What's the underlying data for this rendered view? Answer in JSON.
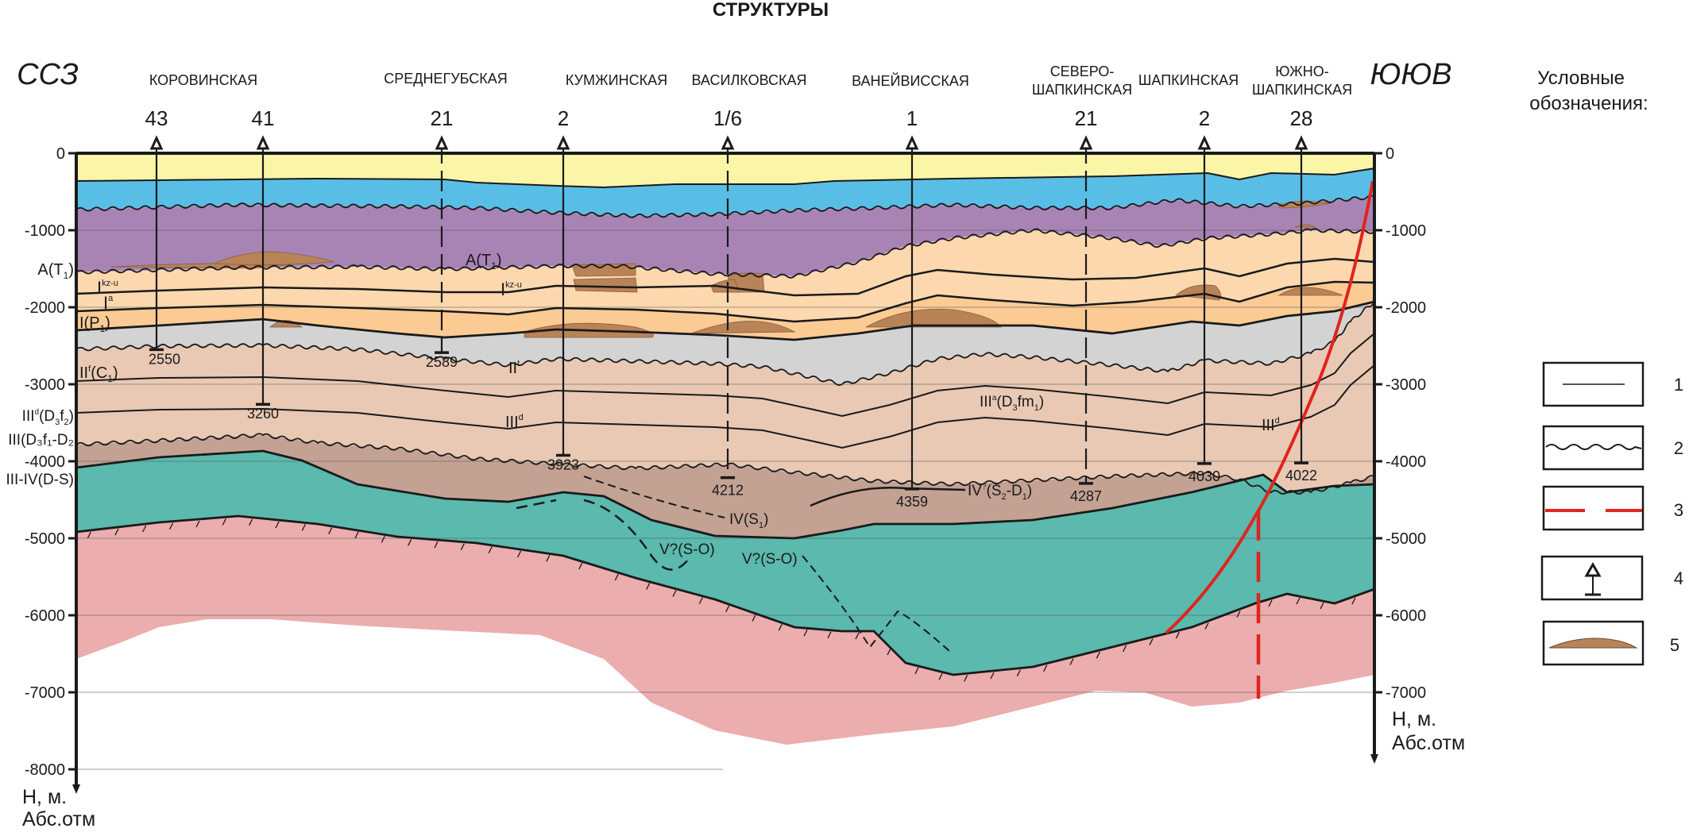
{
  "title": "СТРУКТУРЫ",
  "direction": {
    "left": "ССЗ",
    "right": "ЮЮВ"
  },
  "structures": [
    {
      "id": "korovinskaya",
      "lines": [
        "КОРОВИНСКАЯ"
      ]
    },
    {
      "id": "srednegubskaya",
      "lines": [
        "СРЕДНЕГУБСКАЯ"
      ]
    },
    {
      "id": "kumzhinskaya",
      "lines": [
        "КУМЖИНСКАЯ"
      ]
    },
    {
      "id": "vasilkovskaya",
      "lines": [
        "ВАСИЛКОВСКАЯ"
      ]
    },
    {
      "id": "vaneyvisskaya",
      "lines": [
        "ВАНЕЙВИССКАЯ"
      ]
    },
    {
      "id": "severo-shapkinskaya",
      "lines": [
        "СЕВЕРО-",
        "ШАПКИНСКАЯ"
      ]
    },
    {
      "id": "shapkinskaya",
      "lines": [
        "ШАПКИНСКАЯ"
      ]
    },
    {
      "id": "yuzhno-shapkinskaya",
      "lines": [
        "ЮЖНО-",
        "ШАПКИНСКАЯ"
      ]
    }
  ],
  "wells": [
    {
      "number": "43",
      "bottom_depth": "2550",
      "dashed": false,
      "structure": "korovinskaya"
    },
    {
      "number": "41",
      "bottom_depth": "3260",
      "dashed": false,
      "structure": "korovinskaya"
    },
    {
      "number": "21",
      "bottom_depth": "2589",
      "dashed": true,
      "structure": "srednegubskaya"
    },
    {
      "number": "2",
      "bottom_depth": "3923",
      "dashed": false,
      "structure": "kumzhinskaya"
    },
    {
      "number": "1/6",
      "bottom_depth": "4212",
      "dashed": true,
      "structure": "vasilkovskaya"
    },
    {
      "number": "1",
      "bottom_depth": "4359",
      "dashed": false,
      "structure": "vaneyvisskaya"
    },
    {
      "number": "21",
      "bottom_depth": "4287",
      "dashed": true,
      "structure": "severo-shapkinskaya"
    },
    {
      "number": "2",
      "bottom_depth": "4030",
      "dashed": false,
      "structure": "shapkinskaya"
    },
    {
      "number": "28",
      "bottom_depth": "4022",
      "dashed": false,
      "structure": "yuzhno-shapkinskaya"
    }
  ],
  "axis": {
    "left_ticks": [
      "0",
      "-1000",
      "-2000",
      "-3000",
      "-4000",
      "-5000",
      "-6000",
      "-7000",
      "-8000"
    ],
    "right_ticks": [
      "0",
      "-1000",
      "-2000",
      "-3000",
      "-4000",
      "-5000",
      "-6000",
      "-7000"
    ],
    "unit_line1": "Н, м.",
    "unit_line2": "Абс.отм"
  },
  "strat_labels_left": [
    {
      "base": "A(T",
      "sub": "1",
      "tail": ")"
    },
    {
      "base": "I(P",
      "sub": "1",
      "tail": ")"
    },
    {
      "base": "II",
      "sup": "f",
      "mid": "(C",
      "sub": "1",
      "tail": ")"
    },
    {
      "base": "III",
      "sup": "d",
      "mid": "(D",
      "sub": "3",
      "mid2": "f",
      "sub2": "2",
      "tail": ")"
    },
    {
      "text": "III(D₃f₁-D₂"
    },
    {
      "text": "III-IV(D-S)"
    }
  ],
  "strat_labels_inner": [
    {
      "id": "a-t1",
      "base": "A(T",
      "sub": "1",
      "tail": ")"
    },
    {
      "id": "i-kzu-1",
      "base": "I",
      "sup": "kz-u"
    },
    {
      "id": "i-a",
      "base": "I",
      "sup": "a"
    },
    {
      "id": "i-kzu-2",
      "base": "I",
      "sup": "kz-u"
    },
    {
      "id": "ii-t",
      "base": "II",
      "sup": "t"
    },
    {
      "id": "iii-d",
      "base": "III",
      "sup": "d"
    },
    {
      "id": "iii-a",
      "base": "III",
      "sup": "a",
      "mid": "(D",
      "sub": "3",
      "mid2": "fm",
      "sub2": "1",
      "tail": ")"
    },
    {
      "id": "iii-d-right",
      "base": "III",
      "sup": "d"
    },
    {
      "id": "iv-s1",
      "base": "IV(S",
      "sub": "1",
      "tail": ")"
    },
    {
      "id": "iv-s2d1",
      "base": "IV",
      "sup": "?",
      "mid": "(S",
      "sub": "2",
      "mid2": "-D",
      "sub2": "1",
      "tail": ")"
    },
    {
      "id": "v-so-1",
      "text": "V?(S-O)"
    },
    {
      "id": "v-so-2",
      "text": "V?(S-O)"
    }
  ],
  "layer_colors": {
    "quaternary": "#FBF5A8",
    "cretaceous_blue": "#59BEE6",
    "triassic_purple": "#A884B5",
    "permian_light": "#FDD8AE",
    "permian_orange": "#FCCB94",
    "carboniferous_gray": "#D3D3D3",
    "devonian_tan": "#E9C9B4",
    "devonian_brown": "#C3A293",
    "silurian_teal": "#5BB9AD",
    "basement_pink": "#EBADAE",
    "reef_brown": "#B98358",
    "fault_red": "#E0241E"
  },
  "legend": {
    "title_line1": "Условные",
    "title_line2": "обозначения:",
    "items": [
      {
        "number": "1",
        "symbol": "solid-line"
      },
      {
        "number": "2",
        "symbol": "wavy-line"
      },
      {
        "number": "3",
        "symbol": "red-dashed-line"
      },
      {
        "number": "4",
        "symbol": "well-symbol"
      },
      {
        "number": "5",
        "symbol": "brown-lens"
      }
    ]
  }
}
